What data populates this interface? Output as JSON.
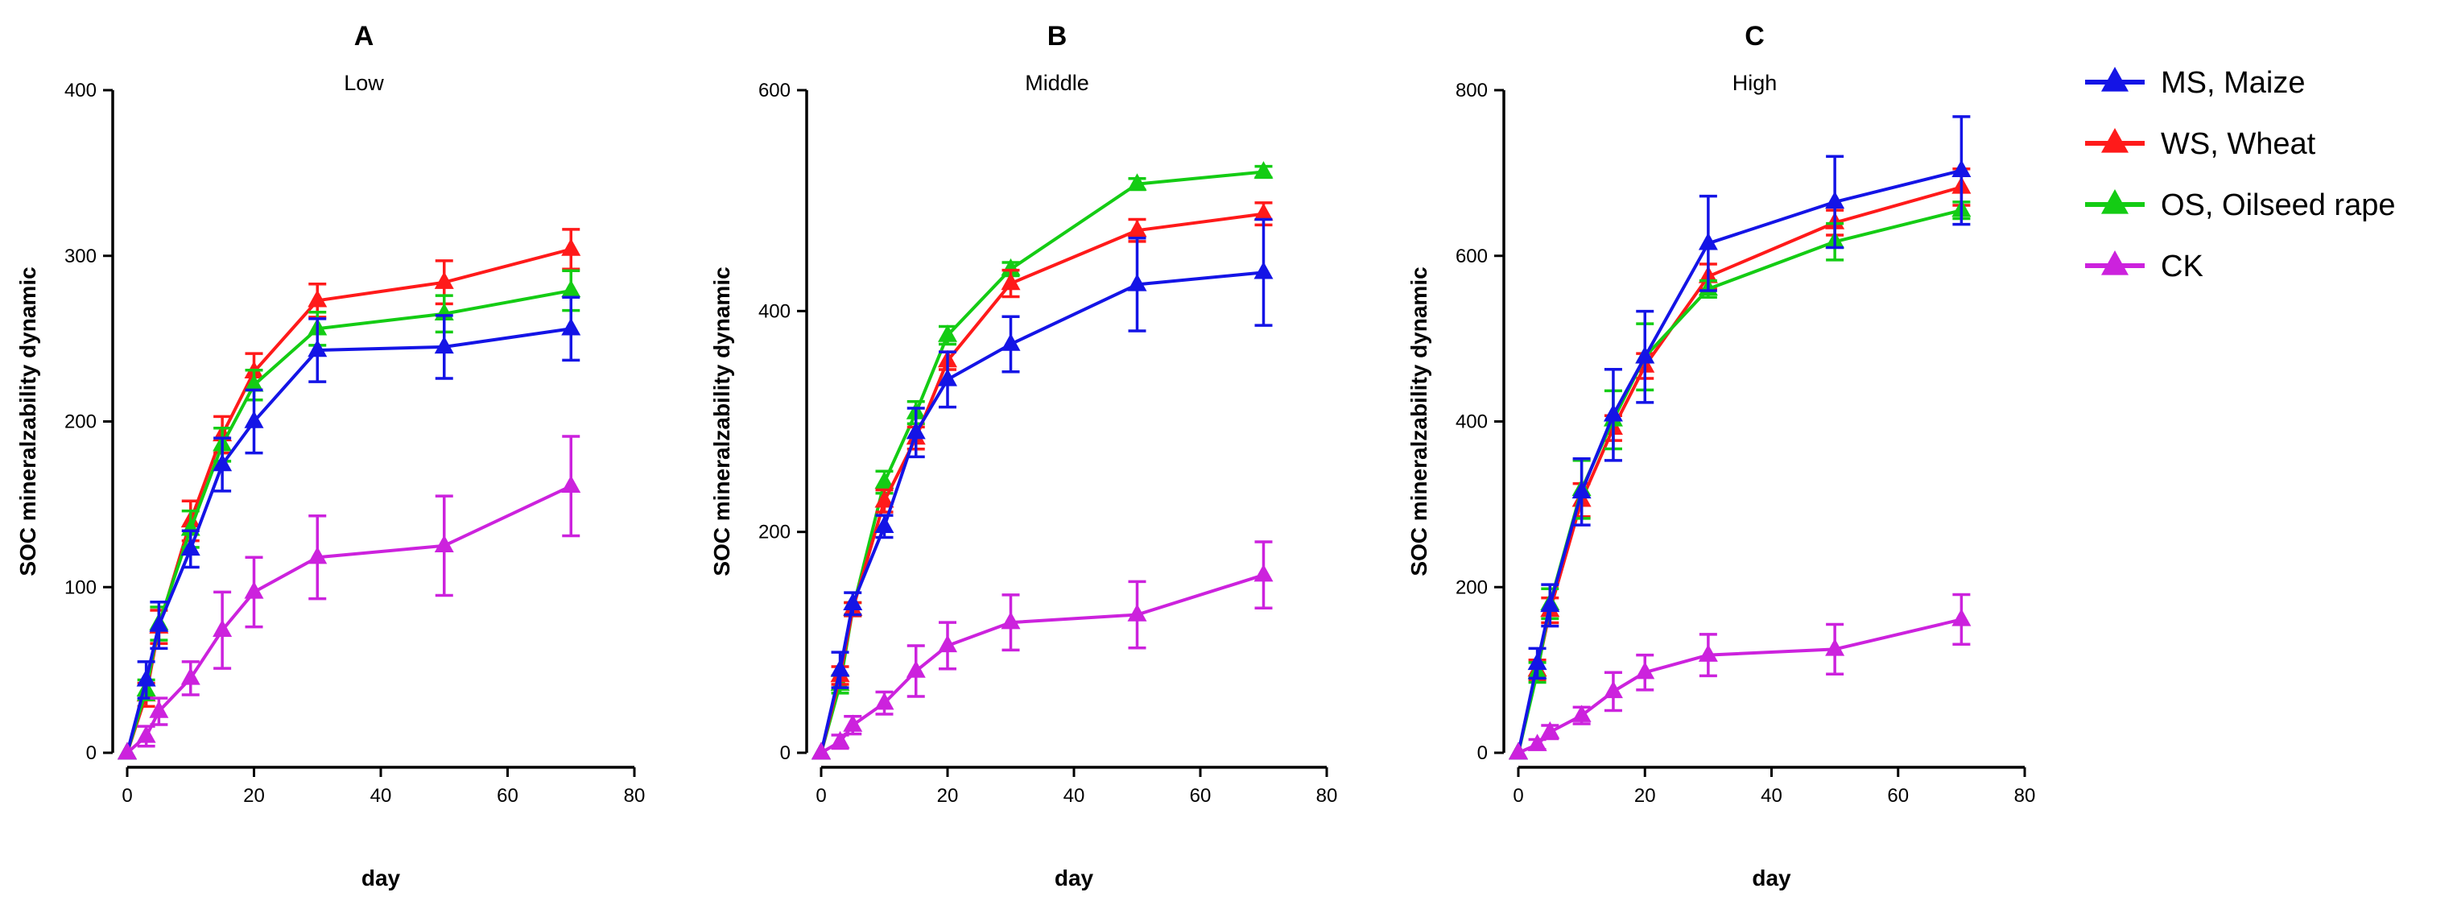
{
  "colors": {
    "MS": "#1414e6",
    "WS": "#ff1a1a",
    "OS": "#14cc14",
    "CK": "#cc22dd",
    "axis": "#000000"
  },
  "legend": [
    {
      "key": "MS",
      "label": "MS, Maize"
    },
    {
      "key": "WS",
      "label": "WS, Wheat"
    },
    {
      "key": "OS",
      "label": "OS, Oilseed rape"
    },
    {
      "key": "CK",
      "label": "CK"
    }
  ],
  "chart_data": [
    {
      "type": "line",
      "letter": "A",
      "title": "Low",
      "xlabel": "day",
      "ylabel": "SOC mineralzability dynamic",
      "xlim": [
        0,
        80
      ],
      "ylim": [
        0,
        400
      ],
      "xticks": [
        0,
        20,
        40,
        60,
        80
      ],
      "yticks": [
        0,
        100,
        200,
        300,
        400
      ],
      "x": [
        0,
        3,
        5,
        10,
        15,
        20,
        30,
        50,
        70
      ],
      "series": [
        {
          "key": "WS",
          "name": "WS, Wheat",
          "values": [
            0,
            35,
            76,
            140,
            192,
            230,
            273,
            284,
            304
          ],
          "err": [
            0,
            7,
            10,
            12,
            11,
            11,
            10,
            13,
            12
          ]
        },
        {
          "key": "OS",
          "name": "OS, Oilseed rape",
          "values": [
            0,
            38,
            78,
            135,
            186,
            222,
            256,
            265,
            279
          ],
          "err": [
            0,
            6,
            10,
            11,
            10,
            9,
            10,
            11,
            12
          ]
        },
        {
          "key": "MS",
          "name": "MS, Maize",
          "values": [
            0,
            44,
            77,
            123,
            174,
            200,
            243,
            245,
            256
          ],
          "err": [
            0,
            11,
            14,
            11,
            16,
            19,
            19,
            19,
            19
          ]
        },
        {
          "key": "CK",
          "name": "CK",
          "values": [
            0,
            10,
            25,
            45,
            74,
            97,
            118,
            125,
            161
          ],
          "err": [
            0,
            6,
            8,
            10,
            23,
            21,
            25,
            30,
            30
          ]
        }
      ]
    },
    {
      "type": "line",
      "letter": "B",
      "title": "Middle",
      "xlabel": "day",
      "ylabel": "SOC mineralzability dynamic",
      "xlim": [
        0,
        80
      ],
      "ylim": [
        0,
        600
      ],
      "xticks": [
        0,
        20,
        40,
        60,
        80
      ],
      "yticks": [
        0,
        200,
        400,
        600
      ],
      "x": [
        0,
        3,
        5,
        10,
        15,
        20,
        30,
        50,
        70
      ],
      "series": [
        {
          "key": "OS",
          "name": "OS, Oilseed rape",
          "values": [
            0,
            62,
            130,
            245,
            308,
            378,
            438,
            515,
            526
          ],
          "err": [
            0,
            8,
            6,
            10,
            10,
            8,
            6,
            5,
            5
          ]
        },
        {
          "key": "WS",
          "name": "WS, Wheat",
          "values": [
            0,
            70,
            130,
            228,
            285,
            355,
            425,
            473,
            488
          ],
          "err": [
            0,
            8,
            6,
            10,
            10,
            8,
            12,
            10,
            10
          ]
        },
        {
          "key": "MS",
          "name": "MS, Maize",
          "values": [
            0,
            75,
            135,
            205,
            290,
            338,
            370,
            424,
            435
          ],
          "err": [
            0,
            16,
            10,
            10,
            22,
            25,
            25,
            42,
            48
          ]
        },
        {
          "key": "CK",
          "name": "CK",
          "values": [
            0,
            10,
            25,
            45,
            74,
            97,
            118,
            125,
            161
          ],
          "err": [
            0,
            6,
            8,
            10,
            23,
            21,
            25,
            30,
            30
          ]
        }
      ]
    },
    {
      "type": "line",
      "letter": "C",
      "title": "High",
      "xlabel": "day",
      "ylabel": "SOC mineralzability dynamic",
      "xlim": [
        0,
        80
      ],
      "ylim": [
        0,
        800
      ],
      "xticks": [
        0,
        20,
        40,
        60,
        80
      ],
      "yticks": [
        0,
        200,
        400,
        600,
        800
      ],
      "x": [
        0,
        3,
        5,
        10,
        15,
        20,
        30,
        50,
        70
      ],
      "series": [
        {
          "key": "WS",
          "name": "WS, Wheat",
          "values": [
            0,
            100,
            172,
            305,
            392,
            467,
            575,
            640,
            683
          ],
          "err": [
            0,
            12,
            15,
            20,
            15,
            15,
            15,
            15,
            22
          ]
        },
        {
          "key": "OS",
          "name": "OS, Oilseed rape",
          "values": [
            0,
            97,
            180,
            318,
            402,
            478,
            560,
            617,
            655
          ],
          "err": [
            0,
            12,
            18,
            35,
            35,
            40,
            10,
            22,
            10
          ]
        },
        {
          "key": "MS",
          "name": "MS, Maize",
          "values": [
            0,
            108,
            178,
            315,
            408,
            478,
            615,
            665,
            703
          ],
          "err": [
            0,
            18,
            25,
            40,
            55,
            55,
            57,
            55,
            65
          ]
        },
        {
          "key": "CK",
          "name": "CK",
          "values": [
            0,
            10,
            25,
            45,
            74,
            97,
            118,
            125,
            161
          ],
          "err": [
            0,
            6,
            8,
            10,
            23,
            21,
            25,
            30,
            30
          ]
        }
      ]
    }
  ]
}
